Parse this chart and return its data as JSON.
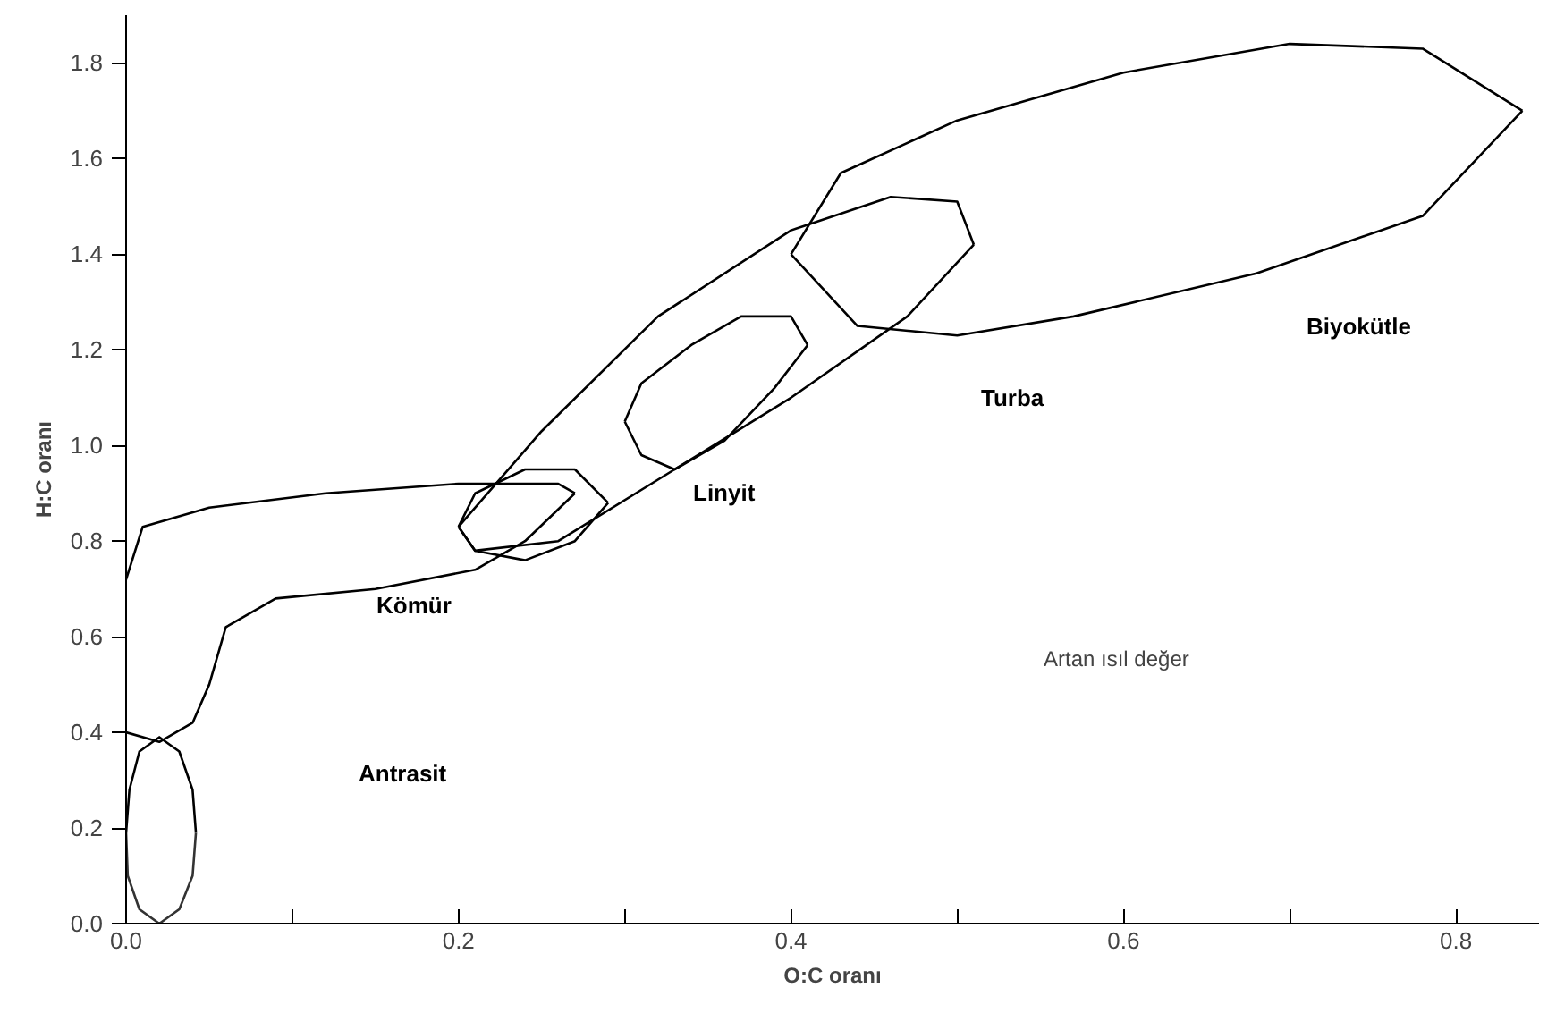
{
  "chart_data": {
    "type": "line",
    "xlabel": "O:C oranı",
    "ylabel": "H:C oranı",
    "xlim": [
      0,
      0.85
    ],
    "ylim": [
      0,
      1.9
    ],
    "xticks": [
      {
        "value": 0,
        "label": "0.0"
      },
      {
        "value": 0.1,
        "label": null
      },
      {
        "value": 0.2,
        "label": "0.2"
      },
      {
        "value": 0.3,
        "label": null
      },
      {
        "value": 0.4,
        "label": "0.4"
      },
      {
        "value": 0.5,
        "label": null
      },
      {
        "value": 0.6,
        "label": "0.6"
      },
      {
        "value": 0.7,
        "label": null
      },
      {
        "value": 0.8,
        "label": "0.8"
      }
    ],
    "yticks": [
      {
        "value": 0,
        "label": "0.0"
      },
      0.2,
      0.4,
      0.6,
      0.8,
      {
        "value": 1,
        "label": "1.0"
      },
      1.2,
      1.4,
      1.6,
      1.8
    ],
    "grid": false,
    "marker": "none",
    "line_style": "solid",
    "series": [
      {
        "color": "#000000",
        "x": [
          0.0,
          0.002,
          0.008,
          0.02,
          0.032,
          0.04,
          0.042
        ],
        "values": [
          0.19,
          0.28,
          0.36,
          0.39,
          0.36,
          0.28,
          0.19
        ]
      },
      {
        "color": "#333333",
        "x": [
          0.0,
          0.001,
          0.008,
          0.02,
          0.032,
          0.04,
          0.042
        ],
        "values": [
          0.19,
          0.1,
          0.03,
          0.0,
          0.03,
          0.1,
          0.19
        ]
      },
      {
        "color": "#000000",
        "x": [
          0.0,
          0.01,
          0.05,
          0.12,
          0.2,
          0.26,
          0.27
        ],
        "values": [
          0.72,
          0.83,
          0.87,
          0.9,
          0.92,
          0.92,
          0.9
        ]
      },
      {
        "color": "#000000",
        "x": [
          0.0,
          0.02,
          0.04,
          0.05,
          0.06,
          0.09,
          0.15,
          0.21,
          0.24,
          0.27
        ],
        "values": [
          0.4,
          0.38,
          0.42,
          0.5,
          0.62,
          0.68,
          0.7,
          0.74,
          0.8,
          0.9
        ]
      },
      {
        "color": "#000000",
        "x": [
          0.2,
          0.21,
          0.24,
          0.27,
          0.29
        ],
        "values": [
          0.83,
          0.9,
          0.95,
          0.95,
          0.88
        ]
      },
      {
        "color": "#000000",
        "x": [
          0.2,
          0.21,
          0.24,
          0.27,
          0.29
        ],
        "values": [
          0.83,
          0.78,
          0.76,
          0.8,
          0.88
        ]
      },
      {
        "color": "#000000",
        "x": [
          0.3,
          0.31,
          0.34,
          0.37,
          0.4,
          0.41
        ],
        "values": [
          1.05,
          1.13,
          1.21,
          1.27,
          1.27,
          1.21
        ]
      },
      {
        "color": "#000000",
        "x": [
          0.3,
          0.31,
          0.33,
          0.36,
          0.39,
          0.41
        ],
        "values": [
          1.05,
          0.98,
          0.95,
          1.01,
          1.12,
          1.21
        ]
      },
      {
        "color": "#000000",
        "x": [
          0.2,
          0.25,
          0.32,
          0.4,
          0.46,
          0.5,
          0.51
        ],
        "values": [
          0.83,
          1.03,
          1.27,
          1.45,
          1.52,
          1.51,
          1.42
        ]
      },
      {
        "color": "#000000",
        "x": [
          0.2,
          0.21,
          0.26,
          0.33,
          0.4,
          0.47,
          0.51
        ],
        "values": [
          0.83,
          0.78,
          0.8,
          0.95,
          1.1,
          1.27,
          1.42
        ]
      },
      {
        "color": "#000000",
        "x": [
          0.4,
          0.43,
          0.5,
          0.6,
          0.7,
          0.78,
          0.84
        ],
        "values": [
          1.4,
          1.57,
          1.68,
          1.78,
          1.84,
          1.83,
          1.7
        ]
      },
      {
        "color": "#000000",
        "x": [
          0.4,
          0.44,
          0.5,
          0.57,
          0.68,
          0.78,
          0.84
        ],
        "values": [
          1.4,
          1.25,
          1.23,
          1.27,
          1.36,
          1.48,
          1.7
        ]
      }
    ],
    "annotations": [
      "Antrasit",
      "Kömür",
      "Linyit",
      "Turba",
      "Biyokütle",
      "Artan ısıl değer"
    ]
  }
}
